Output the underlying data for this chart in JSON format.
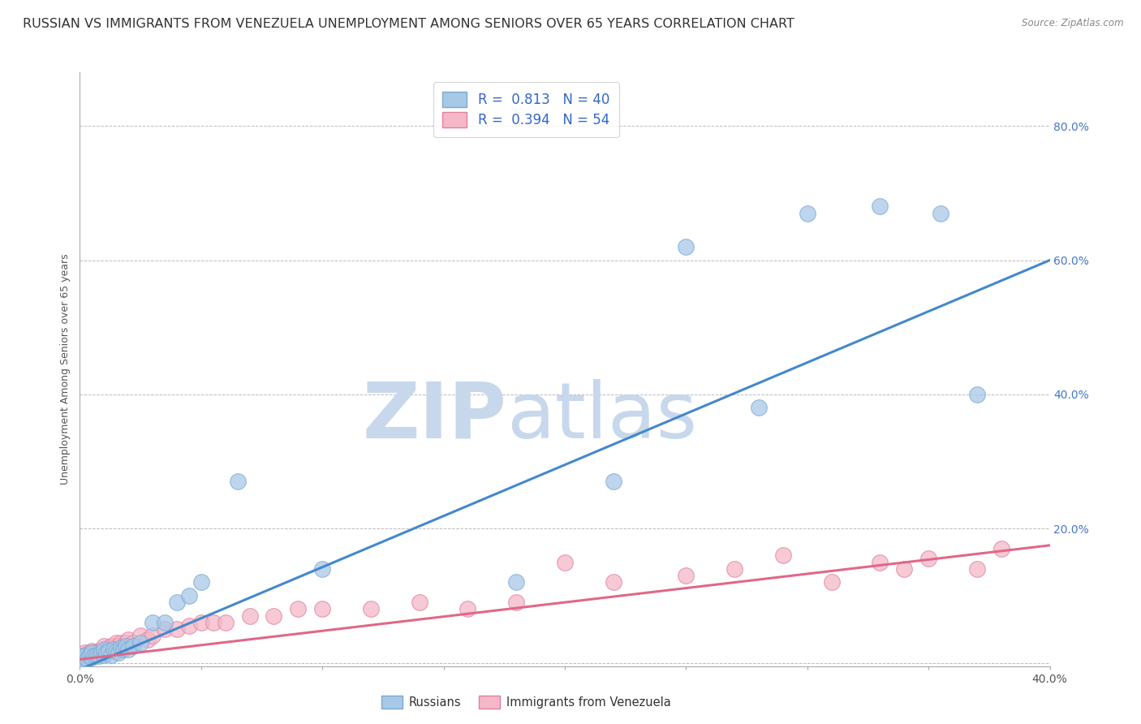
{
  "title": "RUSSIAN VS IMMIGRANTS FROM VENEZUELA UNEMPLOYMENT AMONG SENIORS OVER 65 YEARS CORRELATION CHART",
  "source": "Source: ZipAtlas.com",
  "ylabel": "Unemployment Among Seniors over 65 years",
  "xlim": [
    0.0,
    0.4
  ],
  "ylim": [
    -0.005,
    0.88
  ],
  "yticks": [
    0.0,
    0.2,
    0.4,
    0.6,
    0.8
  ],
  "ytick_labels": [
    "",
    "20.0%",
    "40.0%",
    "60.0%",
    "80.0%"
  ],
  "xticks": [
    0.0,
    0.05,
    0.1,
    0.15,
    0.2,
    0.25,
    0.3,
    0.35,
    0.4
  ],
  "legend_russian_R": 0.813,
  "legend_russian_N": 40,
  "legend_venezuela_R": 0.394,
  "legend_venezuela_N": 54,
  "russian_color": "#a8c8e8",
  "russian_edge": "#7aaad0",
  "venezuela_color": "#f4b8c8",
  "venezuela_edge": "#e080a0",
  "russian_line_color": "#4488cc",
  "venezuela_line_color": "#e06888",
  "russian_x": [
    0.0,
    0.001,
    0.002,
    0.003,
    0.004,
    0.005,
    0.005,
    0.006,
    0.007,
    0.008,
    0.009,
    0.01,
    0.01,
    0.011,
    0.012,
    0.013,
    0.014,
    0.015,
    0.016,
    0.017,
    0.018,
    0.019,
    0.02,
    0.022,
    0.025,
    0.03,
    0.035,
    0.04,
    0.045,
    0.05,
    0.065,
    0.1,
    0.18,
    0.22,
    0.25,
    0.28,
    0.3,
    0.33,
    0.355,
    0.37
  ],
  "russian_y": [
    0.01,
    0.005,
    0.01,
    0.005,
    0.01,
    0.008,
    0.015,
    0.01,
    0.012,
    0.01,
    0.015,
    0.012,
    0.02,
    0.015,
    0.018,
    0.012,
    0.02,
    0.018,
    0.015,
    0.022,
    0.02,
    0.025,
    0.02,
    0.025,
    0.03,
    0.06,
    0.06,
    0.09,
    0.1,
    0.12,
    0.27,
    0.14,
    0.12,
    0.27,
    0.62,
    0.38,
    0.67,
    0.68,
    0.67,
    0.4
  ],
  "venezuela_x": [
    0.0,
    0.001,
    0.002,
    0.002,
    0.003,
    0.004,
    0.005,
    0.005,
    0.006,
    0.007,
    0.008,
    0.009,
    0.01,
    0.01,
    0.011,
    0.012,
    0.013,
    0.014,
    0.015,
    0.015,
    0.016,
    0.017,
    0.018,
    0.019,
    0.02,
    0.022,
    0.025,
    0.028,
    0.03,
    0.035,
    0.04,
    0.045,
    0.05,
    0.055,
    0.06,
    0.07,
    0.08,
    0.09,
    0.1,
    0.12,
    0.14,
    0.16,
    0.18,
    0.2,
    0.22,
    0.25,
    0.27,
    0.29,
    0.31,
    0.33,
    0.34,
    0.35,
    0.37,
    0.38
  ],
  "venezuela_y": [
    0.01,
    0.008,
    0.012,
    0.015,
    0.01,
    0.015,
    0.012,
    0.018,
    0.015,
    0.012,
    0.018,
    0.015,
    0.018,
    0.025,
    0.02,
    0.022,
    0.025,
    0.02,
    0.025,
    0.03,
    0.025,
    0.03,
    0.025,
    0.03,
    0.035,
    0.03,
    0.04,
    0.035,
    0.04,
    0.05,
    0.05,
    0.055,
    0.06,
    0.06,
    0.06,
    0.07,
    0.07,
    0.08,
    0.08,
    0.08,
    0.09,
    0.08,
    0.09,
    0.15,
    0.12,
    0.13,
    0.14,
    0.16,
    0.12,
    0.15,
    0.14,
    0.155,
    0.14,
    0.17
  ],
  "russian_line_x0": 0.0,
  "russian_line_x1": 0.4,
  "russian_line_y0": -0.01,
  "russian_line_y1": 0.6,
  "venezuela_line_x0": 0.0,
  "venezuela_line_x1": 0.4,
  "venezuela_line_y0": 0.005,
  "venezuela_line_y1": 0.175,
  "watermark_zip": "ZIP",
  "watermark_atlas": "atlas",
  "watermark_color": "#c8d8ec",
  "background_color": "#ffffff",
  "grid_color": "#bbbbbb",
  "title_fontsize": 11.5,
  "axis_label_fontsize": 9,
  "tick_fontsize": 10,
  "legend_fontsize": 12
}
